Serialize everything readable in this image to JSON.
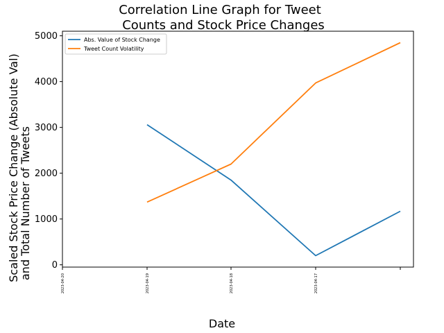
{
  "chart_data": {
    "type": "line",
    "title_lines": [
      "Correlation Line Graph for Tweet",
      "Counts and Stock Price Changes"
    ],
    "xlabel": "Date",
    "ylabel_lines": [
      "Scaled Stock Price Change (Absolute Val)",
      "and Total Number of Tweets"
    ],
    "categories": [
      "2023-04-20",
      "2023-04-19",
      "2023-04-18",
      "2023-04-17",
      ""
    ],
    "series": [
      {
        "name": "Abs. Value of Stock Change",
        "color": "#1f77b4",
        "values": [
          null,
          3060,
          1850,
          200,
          1170
        ]
      },
      {
        "name": "Tweet Count Volatility",
        "color": "#ff7f0e",
        "values": [
          null,
          1370,
          2200,
          3970,
          4850
        ]
      }
    ],
    "ylim": [
      -50,
      5100
    ],
    "yticks": [
      0,
      1000,
      2000,
      3000,
      4000,
      5000
    ],
    "ytick_labels": [
      "0",
      "1000",
      "2000",
      "3000",
      "4000",
      "5000"
    ],
    "grid": false,
    "legend_position": "upper-left"
  }
}
